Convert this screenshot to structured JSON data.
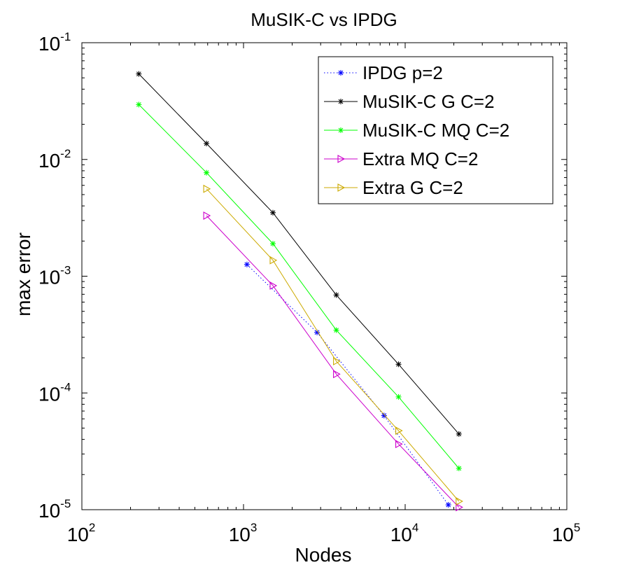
{
  "chart_data": {
    "type": "line",
    "title": "MuSIK-C vs IPDG",
    "xlabel": "Nodes",
    "ylabel": "max error",
    "xscale": "log",
    "yscale": "log",
    "xlim": [
      100,
      100000
    ],
    "ylim": [
      1e-05,
      0.1
    ],
    "x_ticks": [
      {
        "base": "10",
        "exp": "2",
        "value": 100
      },
      {
        "base": "10",
        "exp": "3",
        "value": 1000
      },
      {
        "base": "10",
        "exp": "4",
        "value": 10000
      },
      {
        "base": "10",
        "exp": "5",
        "value": 100000
      }
    ],
    "y_ticks": [
      {
        "base": "10",
        "exp": "-5",
        "value": 1e-05
      },
      {
        "base": "10",
        "exp": "-4",
        "value": 0.0001
      },
      {
        "base": "10",
        "exp": "-3",
        "value": 0.001
      },
      {
        "base": "10",
        "exp": "-2",
        "value": 0.01
      },
      {
        "base": "10",
        "exp": "-1",
        "value": 0.1
      }
    ],
    "grid": false,
    "legend_position": "top-right",
    "series": [
      {
        "name": "IPDG p=2",
        "color": "#0000ff",
        "line": "dotted",
        "marker": "asterisk",
        "x": [
          1050,
          2850,
          7400,
          18500
        ],
        "y": [
          0.00126,
          0.00033,
          6.4e-05,
          1.1e-05
        ]
      },
      {
        "name": "MuSIK-C G C=2",
        "color": "#000000",
        "line": "solid",
        "marker": "asterisk",
        "x": [
          225,
          590,
          1520,
          3750,
          9100,
          21500
        ],
        "y": [
          0.054,
          0.0137,
          0.0035,
          0.00069,
          0.000176,
          4.45e-05
        ]
      },
      {
        "name": "MuSIK-C MQ C=2",
        "color": "#00ff00",
        "line": "solid",
        "marker": "asterisk",
        "x": [
          225,
          590,
          1520,
          3750,
          9100,
          21500
        ],
        "y": [
          0.0295,
          0.0077,
          0.0019,
          0.000345,
          9.25e-05,
          2.26e-05
        ]
      },
      {
        "name": "Extra MQ C=2",
        "color": "#cc00cc",
        "line": "solid",
        "marker": "triangle-right",
        "x": [
          590,
          1520,
          3750,
          9100,
          21500
        ],
        "y": [
          0.0033,
          0.00083,
          0.000145,
          3.65e-05,
          1.05e-05
        ]
      },
      {
        "name": "Extra G C=2",
        "color": "#ccaa00",
        "line": "solid",
        "marker": "triangle-right",
        "x": [
          590,
          1520,
          3750,
          9100,
          21500
        ],
        "y": [
          0.0056,
          0.00137,
          0.000187,
          4.75e-05,
          1.18e-05
        ]
      }
    ]
  }
}
